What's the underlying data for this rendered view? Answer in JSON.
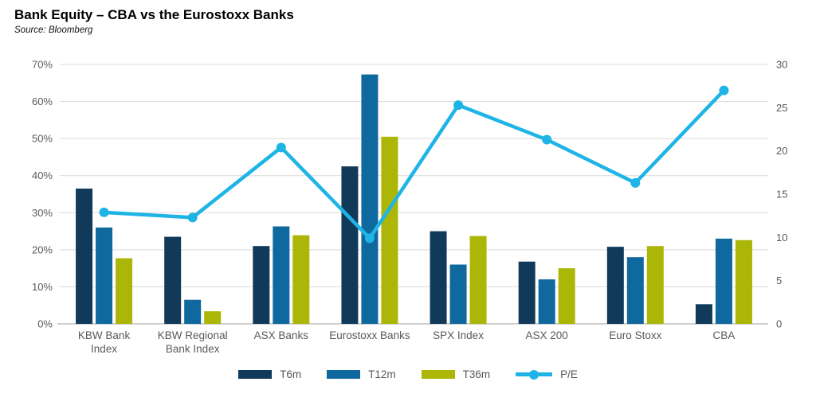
{
  "header": {
    "title": "Bank Equity – CBA vs the Eurostoxx Banks",
    "source": "Source: Bloomberg"
  },
  "chart_data": {
    "type": "bar+line combo",
    "categories": [
      "KBW Bank Index",
      "KBW Regional Bank Index",
      "ASX Banks",
      "Eurostoxx Banks",
      "SPX Index",
      "ASX 200",
      "Euro Stoxx",
      "CBA"
    ],
    "category_lines": [
      [
        "KBW Bank",
        "Index"
      ],
      [
        "KBW Regional",
        "Bank Index"
      ],
      [
        "ASX Banks"
      ],
      [
        "Eurostoxx Banks"
      ],
      [
        "SPX Index"
      ],
      [
        "ASX 200"
      ],
      [
        "Euro Stoxx"
      ],
      [
        "CBA"
      ]
    ],
    "series": [
      {
        "name": "T6m",
        "type": "bar",
        "axis": "left",
        "color": "#113a5a",
        "values": [
          36.5,
          23.5,
          21.0,
          42.5,
          25.0,
          16.8,
          20.8,
          5.3
        ]
      },
      {
        "name": "T12m",
        "type": "bar",
        "axis": "left",
        "color": "#0f689e",
        "values": [
          26.0,
          6.5,
          26.3,
          67.3,
          16.0,
          12.0,
          18.0,
          23.0
        ]
      },
      {
        "name": "T36m",
        "type": "bar",
        "axis": "left",
        "color": "#abb607",
        "values": [
          17.7,
          3.4,
          23.9,
          50.5,
          23.7,
          15.0,
          21.0,
          22.6
        ]
      },
      {
        "name": "P/E",
        "type": "line",
        "axis": "right",
        "color": "#1eb4e6",
        "values": [
          12.9,
          12.3,
          20.4,
          9.9,
          25.3,
          21.3,
          16.3,
          27.0
        ]
      }
    ],
    "left_axis": {
      "min": 0,
      "max": 70,
      "step": 10,
      "labels": [
        "0%",
        "10%",
        "20%",
        "30%",
        "40%",
        "50%",
        "60%",
        "70%"
      ]
    },
    "right_axis": {
      "min": 0,
      "max": 30,
      "step": 5,
      "labels": [
        "0",
        "5",
        "10",
        "15",
        "20",
        "25",
        "30"
      ]
    },
    "grid": true,
    "legend_position": "bottom",
    "colors": {
      "gridline": "#d9d9d9",
      "baseline": "#b3b3b3",
      "tick_label": "#595959",
      "category_label": "#595959"
    }
  }
}
